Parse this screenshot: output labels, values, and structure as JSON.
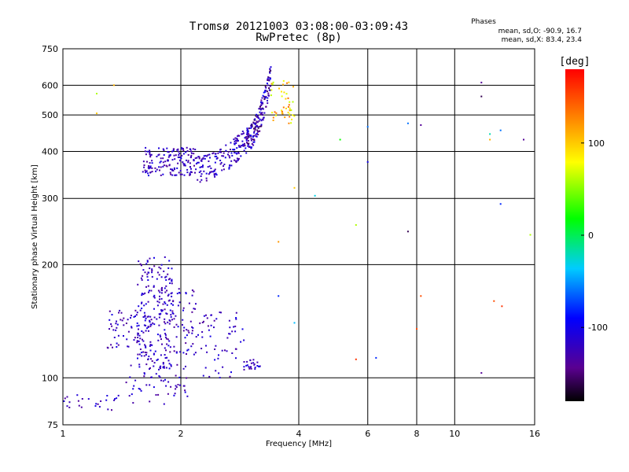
{
  "chart_data": {
    "type": "scatter",
    "title": "Tromsø 20121003 03:08:00-03:09:43",
    "subtitle": "RwPretec (8p)",
    "xlabel": "Frequency [MHz]",
    "ylabel": "Stationary phase Virtual Height [km]",
    "x_scale": "log",
    "y_scale": "log",
    "xlim": [
      1,
      16
    ],
    "ylim": [
      75,
      750
    ],
    "x_ticks": [
      1,
      2,
      4,
      6,
      8,
      10,
      16
    ],
    "y_ticks": [
      75,
      100,
      200,
      300,
      400,
      500,
      600,
      750
    ],
    "grid": true,
    "phase_info": {
      "header": "Phases",
      "line_o": "mean, sd,O: -90.9, 16.7",
      "line_x": "mean, sd,X:  83.4, 23.4"
    },
    "colorbar": {
      "label": "[deg]",
      "range": [
        -180,
        180
      ],
      "ticks": [
        100,
        0,
        -100
      ],
      "colormap": "rainbow"
    },
    "clusters": [
      {
        "x": [
          1.55,
          1.9
        ],
        "y": [
          105,
          210
        ],
        "phase": [
          -140,
          -100
        ]
      },
      {
        "x": [
          1.3,
          1.65
        ],
        "y": [
          120,
          155
        ],
        "phase": [
          -140,
          -100
        ]
      },
      {
        "x": [
          1.0,
          1.4
        ],
        "y": [
          82,
          90
        ],
        "phase": [
          -140,
          -100
        ]
      },
      {
        "x": [
          1.45,
          2.1
        ],
        "y": [
          85,
          110
        ],
        "phase": [
          -140,
          -100
        ]
      },
      {
        "x": [
          1.9,
          2.2
        ],
        "y": [
          115,
          175
        ],
        "phase": [
          -140,
          -100
        ]
      },
      {
        "x": [
          2.2,
          2.9
        ],
        "y": [
          100,
          150
        ],
        "phase": [
          -140,
          -100
        ]
      },
      {
        "x": [
          2.9,
          3.2
        ],
        "y": [
          105,
          112
        ],
        "phase": [
          -140,
          -100
        ]
      },
      {
        "x": [
          1.6,
          2.2
        ],
        "y": [
          345,
          410
        ],
        "phase": [
          -140,
          -100
        ]
      },
      {
        "x": [
          2.2,
          3.0
        ],
        "y": [
          360,
          440
        ],
        "phase": [
          -140,
          -100
        ]
      },
      {
        "x": [
          2.9,
          3.4
        ],
        "y": [
          420,
          640
        ],
        "phase": [
          -160,
          -90
        ]
      },
      {
        "x": [
          3.4,
          3.9
        ],
        "y": [
          470,
          620
        ],
        "phase": [
          60,
          140
        ]
      }
    ],
    "isolated_points": [
      {
        "x": 1.22,
        "y": 570,
        "phase": 60
      },
      {
        "x": 1.22,
        "y": 505,
        "phase": 100
      },
      {
        "x": 1.35,
        "y": 600,
        "phase": 110
      },
      {
        "x": 4.4,
        "y": 305,
        "phase": -30
      },
      {
        "x": 5.1,
        "y": 430,
        "phase": 20
      },
      {
        "x": 6.0,
        "y": 465,
        "phase": -60
      },
      {
        "x": 6.0,
        "y": 375,
        "phase": -100
      },
      {
        "x": 7.6,
        "y": 475,
        "phase": -60
      },
      {
        "x": 8.2,
        "y": 470,
        "phase": -140
      },
      {
        "x": 5.6,
        "y": 255,
        "phase": 60
      },
      {
        "x": 7.6,
        "y": 245,
        "phase": -160
      },
      {
        "x": 5.6,
        "y": 112,
        "phase": 160
      },
      {
        "x": 6.3,
        "y": 113,
        "phase": -80
      },
      {
        "x": 8.2,
        "y": 165,
        "phase": 150
      },
      {
        "x": 8.0,
        "y": 135,
        "phase": 150
      },
      {
        "x": 11.7,
        "y": 610,
        "phase": -140
      },
      {
        "x": 11.7,
        "y": 560,
        "phase": -160
      },
      {
        "x": 12.3,
        "y": 445,
        "phase": -20
      },
      {
        "x": 12.3,
        "y": 430,
        "phase": 110
      },
      {
        "x": 13.1,
        "y": 455,
        "phase": -60
      },
      {
        "x": 15.0,
        "y": 430,
        "phase": -140
      },
      {
        "x": 13.1,
        "y": 290,
        "phase": -80
      },
      {
        "x": 15.6,
        "y": 240,
        "phase": 60
      },
      {
        "x": 12.6,
        "y": 160,
        "phase": 150
      },
      {
        "x": 13.2,
        "y": 155,
        "phase": 160
      },
      {
        "x": 11.7,
        "y": 103,
        "phase": -140
      },
      {
        "x": 3.9,
        "y": 320,
        "phase": 100
      },
      {
        "x": 3.9,
        "y": 140,
        "phase": -40
      },
      {
        "x": 3.55,
        "y": 230,
        "phase": 120
      },
      {
        "x": 3.55,
        "y": 165,
        "phase": -80
      }
    ]
  }
}
